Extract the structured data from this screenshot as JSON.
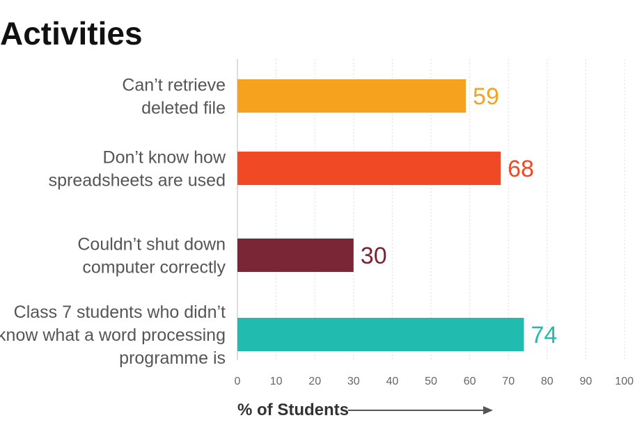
{
  "chart_data": {
    "type": "bar",
    "orientation": "horizontal",
    "title": "Activities",
    "xlabel": "% of Students",
    "ylabel": "",
    "xlim": [
      0,
      100
    ],
    "ticks": [
      0,
      10,
      20,
      30,
      40,
      50,
      60,
      70,
      80,
      90,
      100
    ],
    "grid": true,
    "categories": [
      [
        "Can’t retrieve",
        "deleted file"
      ],
      [
        "Don’t know how",
        "spreadsheets are used"
      ],
      [
        "Couldn’t shut down",
        "computer correctly"
      ],
      [
        "Class 7 students who didn’t",
        "know what a word processing",
        "programme is"
      ]
    ],
    "values": [
      59,
      68,
      30,
      74
    ],
    "colors": [
      "#F7A21E",
      "#EF4926",
      "#7A2637",
      "#22BBAF"
    ]
  }
}
